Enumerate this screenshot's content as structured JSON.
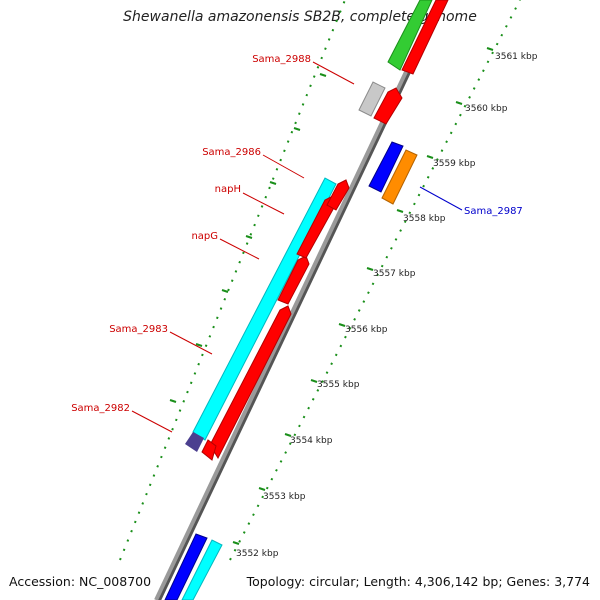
{
  "title": "Shewanella amazonensis SB2B, complete genome",
  "accession": "Accession: NC_008700",
  "topology": "Topology: circular; Length: 4,306,142 bp; Genes: 3,774",
  "ticks": [
    "3552 kbp",
    "3553 kbp",
    "3554 kbp",
    "3555 kbp",
    "3556 kbp",
    "3557 kbp",
    "3558 kbp",
    "3559 kbp",
    "3560 kbp",
    "3561 kbp"
  ],
  "gene_labels": [
    {
      "name": "Sama_2988",
      "color": "#cc0000"
    },
    {
      "name": "Sama_2986",
      "color": "#cc0000"
    },
    {
      "name": "napH",
      "color": "#cc0000"
    },
    {
      "name": "napG",
      "color": "#cc0000"
    },
    {
      "name": "Sama_2983",
      "color": "#cc0000"
    },
    {
      "name": "Sama_2982",
      "color": "#cc0000"
    },
    {
      "name": "Sama_2987",
      "color": "#0000cc"
    }
  ],
  "colors": {
    "backbone": "#8a8a8a",
    "cds": "#ff0000",
    "reverse_feature": "#00ffff",
    "forward_feature": "#0000ff",
    "orange_feature": "#ff8c00",
    "green_feature": "#33cc33",
    "gray_feature": "#c8c8c8",
    "purple_feature": "#4b3f8f",
    "tick_green": "#1a8f1a"
  }
}
